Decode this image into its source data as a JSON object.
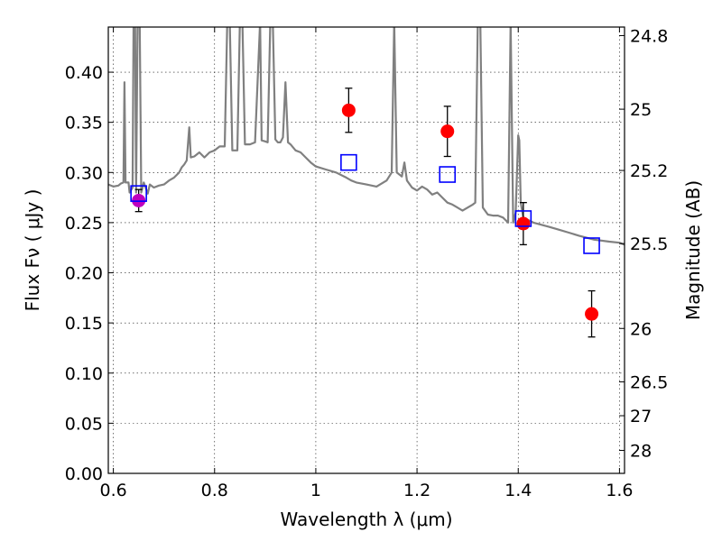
{
  "chart_data": {
    "type": "scatter",
    "title": "",
    "xlabel": "Wavelength  λ (μm)",
    "ylabel": "Flux  Fν  ( μJy )",
    "ylabel_right": "Magnitude (AB)",
    "xlim": [
      0.59,
      1.61
    ],
    "ylim": [
      0.0,
      0.445
    ],
    "grid": true,
    "x_ticks": [
      0.6,
      0.8,
      1.0,
      1.2,
      1.4,
      1.6
    ],
    "x_tick_labels": [
      "0.6",
      "0.8",
      "1",
      "1.2",
      "1.4",
      "1.6"
    ],
    "y_ticks": [
      0.0,
      0.05,
      0.1,
      0.15,
      0.2,
      0.25,
      0.3,
      0.35,
      0.4
    ],
    "y_tick_labels": [
      "0.00",
      "0.05",
      "0.10",
      "0.15",
      "0.20",
      "0.25",
      "0.30",
      "0.35",
      "0.40"
    ],
    "right_ticks": [
      {
        "flux": 0.4365,
        "label": "24.8"
      },
      {
        "flux": 0.3631,
        "label": "25"
      },
      {
        "flux": 0.302,
        "label": "25.2"
      },
      {
        "flux": 0.2291,
        "label": "25.5"
      },
      {
        "flux": 0.1445,
        "label": "26"
      },
      {
        "flux": 0.0912,
        "label": "26.5"
      },
      {
        "flux": 0.0575,
        "label": "27"
      },
      {
        "flux": 0.0229,
        "label": "28"
      }
    ],
    "series": [
      {
        "kind": "line",
        "color": "#808080",
        "points": [
          [
            0.59,
            0.288
          ],
          [
            0.6,
            0.286
          ],
          [
            0.61,
            0.287
          ],
          [
            0.615,
            0.289
          ],
          [
            0.62,
            0.29
          ],
          [
            0.622,
            0.39
          ],
          [
            0.624,
            0.29
          ],
          [
            0.63,
            0.29
          ],
          [
            0.632,
            0.28
          ],
          [
            0.638,
            0.285
          ],
          [
            0.64,
            0.45
          ],
          [
            0.643,
            0.45
          ],
          [
            0.645,
            0.28
          ],
          [
            0.648,
            0.45
          ],
          [
            0.652,
            0.45
          ],
          [
            0.655,
            0.28
          ],
          [
            0.66,
            0.29
          ],
          [
            0.668,
            0.279
          ],
          [
            0.672,
            0.288
          ],
          [
            0.68,
            0.285
          ],
          [
            0.69,
            0.287
          ],
          [
            0.7,
            0.288
          ],
          [
            0.71,
            0.292
          ],
          [
            0.72,
            0.295
          ],
          [
            0.73,
            0.3
          ],
          [
            0.735,
            0.305
          ],
          [
            0.74,
            0.308
          ],
          [
            0.745,
            0.312
          ],
          [
            0.75,
            0.345
          ],
          [
            0.753,
            0.315
          ],
          [
            0.76,
            0.316
          ],
          [
            0.77,
            0.32
          ],
          [
            0.78,
            0.315
          ],
          [
            0.79,
            0.32
          ],
          [
            0.8,
            0.322
          ],
          [
            0.81,
            0.326
          ],
          [
            0.82,
            0.326
          ],
          [
            0.825,
            0.45
          ],
          [
            0.83,
            0.45
          ],
          [
            0.835,
            0.322
          ],
          [
            0.84,
            0.322
          ],
          [
            0.845,
            0.322
          ],
          [
            0.85,
            0.45
          ],
          [
            0.855,
            0.45
          ],
          [
            0.86,
            0.328
          ],
          [
            0.87,
            0.328
          ],
          [
            0.88,
            0.33
          ],
          [
            0.89,
            0.45
          ],
          [
            0.893,
            0.332
          ],
          [
            0.9,
            0.331
          ],
          [
            0.905,
            0.33
          ],
          [
            0.91,
            0.45
          ],
          [
            0.915,
            0.45
          ],
          [
            0.92,
            0.333
          ],
          [
            0.925,
            0.33
          ],
          [
            0.93,
            0.33
          ],
          [
            0.935,
            0.335
          ],
          [
            0.94,
            0.39
          ],
          [
            0.945,
            0.33
          ],
          [
            0.95,
            0.328
          ],
          [
            0.96,
            0.322
          ],
          [
            0.97,
            0.32
          ],
          [
            0.98,
            0.315
          ],
          [
            0.99,
            0.31
          ],
          [
            1.0,
            0.306
          ],
          [
            1.02,
            0.303
          ],
          [
            1.04,
            0.3
          ],
          [
            1.06,
            0.295
          ],
          [
            1.07,
            0.292
          ],
          [
            1.08,
            0.29
          ],
          [
            1.1,
            0.288
          ],
          [
            1.12,
            0.286
          ],
          [
            1.14,
            0.292
          ],
          [
            1.15,
            0.3
          ],
          [
            1.155,
            0.45
          ],
          [
            1.16,
            0.3
          ],
          [
            1.17,
            0.296
          ],
          [
            1.175,
            0.31
          ],
          [
            1.18,
            0.292
          ],
          [
            1.19,
            0.285
          ],
          [
            1.2,
            0.282
          ],
          [
            1.21,
            0.286
          ],
          [
            1.22,
            0.283
          ],
          [
            1.23,
            0.278
          ],
          [
            1.24,
            0.28
          ],
          [
            1.25,
            0.275
          ],
          [
            1.26,
            0.27
          ],
          [
            1.27,
            0.268
          ],
          [
            1.28,
            0.265
          ],
          [
            1.29,
            0.262
          ],
          [
            1.3,
            0.265
          ],
          [
            1.31,
            0.268
          ],
          [
            1.315,
            0.27
          ],
          [
            1.32,
            0.45
          ],
          [
            1.325,
            0.45
          ],
          [
            1.33,
            0.265
          ],
          [
            1.34,
            0.258
          ],
          [
            1.35,
            0.257
          ],
          [
            1.36,
            0.257
          ],
          [
            1.37,
            0.255
          ],
          [
            1.38,
            0.25
          ],
          [
            1.385,
            0.45
          ],
          [
            1.39,
            0.25
          ],
          [
            1.395,
            0.26
          ],
          [
            1.4,
            0.337
          ],
          [
            1.402,
            0.332
          ],
          [
            1.405,
            0.27
          ],
          [
            1.41,
            0.255
          ],
          [
            1.43,
            0.25
          ],
          [
            1.46,
            0.246
          ],
          [
            1.48,
            0.243
          ],
          [
            1.5,
            0.24
          ],
          [
            1.52,
            0.237
          ],
          [
            1.55,
            0.233
          ],
          [
            1.58,
            0.231
          ],
          [
            1.6,
            0.23
          ],
          [
            1.61,
            0.228
          ]
        ]
      },
      {
        "kind": "points",
        "marker": "circle",
        "color": "#ff0000",
        "points": [
          {
            "x": 1.065,
            "y": 0.362,
            "err": 0.022
          },
          {
            "x": 1.26,
            "y": 0.341,
            "err": 0.025
          },
          {
            "x": 1.41,
            "y": 0.249,
            "err": 0.021
          },
          {
            "x": 1.545,
            "y": 0.159,
            "err": 0.023
          }
        ]
      },
      {
        "kind": "points",
        "marker": "circle",
        "color": "#bf00bf",
        "points": [
          {
            "x": 0.65,
            "y": 0.272,
            "err": 0.011
          }
        ]
      },
      {
        "kind": "points",
        "marker": "square-open",
        "color": "#0000ff",
        "points": [
          {
            "x": 0.65,
            "y": 0.279
          },
          {
            "x": 1.065,
            "y": 0.31
          },
          {
            "x": 1.26,
            "y": 0.298
          },
          {
            "x": 1.41,
            "y": 0.254
          },
          {
            "x": 1.545,
            "y": 0.227
          }
        ]
      }
    ]
  }
}
